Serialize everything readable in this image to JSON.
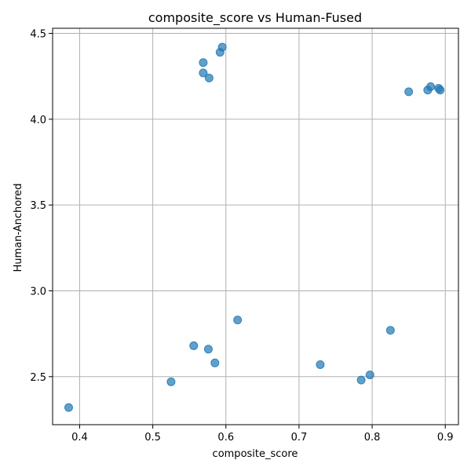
{
  "chart_data": {
    "type": "scatter",
    "title": "composite_score vs Human-Fused",
    "xlabel": "composite_score",
    "ylabel": "Human-Anchored",
    "xlim": [
      0.363,
      0.918
    ],
    "ylim": [
      2.22,
      4.53
    ],
    "xticks": [
      0.4,
      0.5,
      0.6,
      0.7,
      0.8,
      0.9
    ],
    "xtick_labels": [
      "0.4",
      "0.5",
      "0.6",
      "0.7",
      "0.8",
      "0.9"
    ],
    "yticks": [
      2.5,
      3.0,
      3.5,
      4.0,
      4.5
    ],
    "ytick_labels": [
      "2.5",
      "3.0",
      "3.5",
      "4.0",
      "4.5"
    ],
    "grid": true,
    "marker_color": "#1f77b4",
    "marker_alpha": 0.7,
    "points": [
      {
        "x": 0.385,
        "y": 2.32
      },
      {
        "x": 0.525,
        "y": 2.47
      },
      {
        "x": 0.556,
        "y": 2.68
      },
      {
        "x": 0.576,
        "y": 2.66
      },
      {
        "x": 0.585,
        "y": 2.58
      },
      {
        "x": 0.616,
        "y": 2.83
      },
      {
        "x": 0.729,
        "y": 2.57
      },
      {
        "x": 0.785,
        "y": 2.48
      },
      {
        "x": 0.797,
        "y": 2.51
      },
      {
        "x": 0.825,
        "y": 2.77
      },
      {
        "x": 0.569,
        "y": 4.33
      },
      {
        "x": 0.569,
        "y": 4.27
      },
      {
        "x": 0.577,
        "y": 4.24
      },
      {
        "x": 0.592,
        "y": 4.39
      },
      {
        "x": 0.595,
        "y": 4.42
      },
      {
        "x": 0.85,
        "y": 4.16
      },
      {
        "x": 0.876,
        "y": 4.17
      },
      {
        "x": 0.88,
        "y": 4.19
      },
      {
        "x": 0.891,
        "y": 4.18
      },
      {
        "x": 0.893,
        "y": 4.17
      }
    ]
  }
}
